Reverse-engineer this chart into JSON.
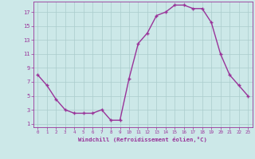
{
  "x": [
    0,
    1,
    2,
    3,
    4,
    5,
    6,
    7,
    8,
    9,
    10,
    11,
    12,
    13,
    14,
    15,
    16,
    17,
    18,
    19,
    20,
    21,
    22,
    23
  ],
  "y": [
    8.0,
    6.5,
    4.5,
    3.0,
    2.5,
    2.5,
    2.5,
    3.0,
    1.5,
    1.5,
    7.5,
    12.5,
    14.0,
    16.5,
    17.0,
    18.0,
    18.0,
    17.5,
    17.5,
    15.5,
    11.0,
    8.0,
    6.5,
    5.0
  ],
  "line_color": "#993399",
  "marker": "+",
  "marker_size": 3,
  "bg_color": "#cce8e8",
  "grid_color": "#aacccc",
  "xlabel": "Windchill (Refroidissement éolien,°C)",
  "xlabel_color": "#993399",
  "tick_color": "#993399",
  "ylabel_ticks": [
    1,
    3,
    5,
    7,
    9,
    11,
    13,
    15,
    17
  ],
  "xlim": [
    -0.5,
    23.5
  ],
  "ylim": [
    0.5,
    18.5
  ],
  "linewidth": 1.0
}
